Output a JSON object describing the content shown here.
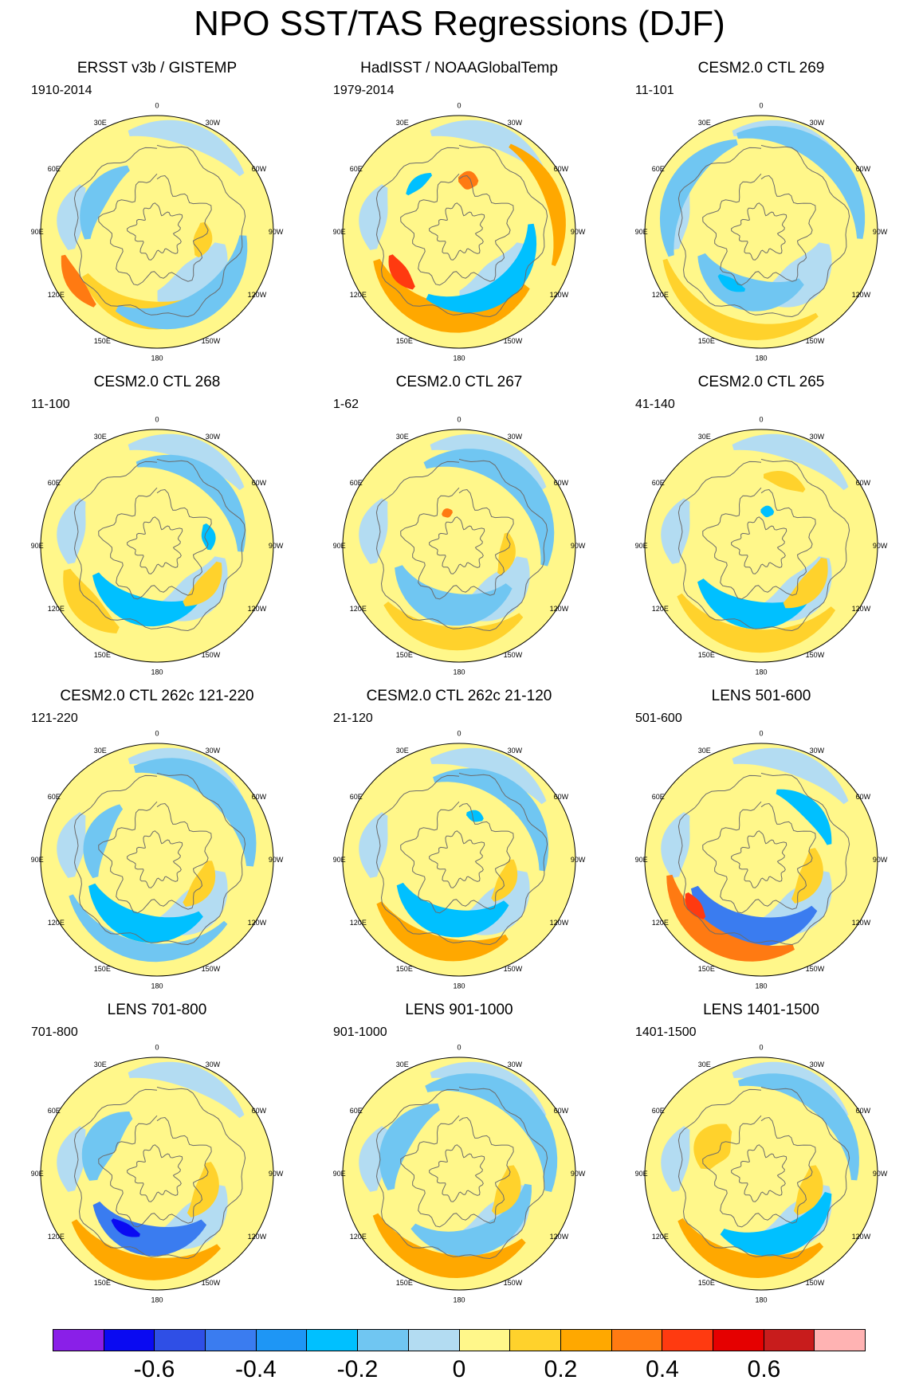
{
  "title": "NPO SST/TAS Regressions (DJF)",
  "lon_labels": [
    "180",
    "150E",
    "120E",
    "90E",
    "60E",
    "30E",
    "0",
    "30W",
    "60W",
    "90W",
    "120W",
    "150W"
  ],
  "colorbar": {
    "colors": [
      "#8a1fe8",
      "#0a0af2",
      "#2f4fe6",
      "#3a7cf0",
      "#1e96f5",
      "#00c0ff",
      "#70c6f2",
      "#b3dcf2",
      "#fff78a",
      "#ffd22c",
      "#ffa800",
      "#ff7a12",
      "#ff3a10",
      "#e50000",
      "#c81c1c",
      "#ffb3b3"
    ],
    "labels": [
      "-0.6",
      "-0.4",
      "-0.2",
      "0",
      "0.2",
      "0.4",
      "0.6"
    ]
  },
  "panels": [
    {
      "title": "ERSST v3b / GISTEMP",
      "period": "1910-2014",
      "blobs": [
        {
          "type": "pos1",
          "lon": 175,
          "r": 0.72,
          "a": 0.3,
          "b": 0.12
        },
        {
          "type": "neg1",
          "lon": -150,
          "r": 0.74,
          "a": 0.32,
          "b": 0.12
        },
        {
          "type": "pos3",
          "lon": 122,
          "r": 0.83,
          "a": 0.1,
          "b": 0.07
        },
        {
          "type": "neg1",
          "lon": 60,
          "r": 0.6,
          "a": 0.2,
          "b": 0.1
        },
        {
          "type": "pos1",
          "lon": -100,
          "r": 0.4,
          "a": 0.12,
          "b": 0.08
        }
      ]
    },
    {
      "title": "HadISST / NOAAGlobalTemp",
      "period": "1979-2014",
      "blobs": [
        {
          "type": "pos2",
          "lon": 170,
          "r": 0.75,
          "a": 0.34,
          "b": 0.12
        },
        {
          "type": "neg2",
          "lon": -145,
          "r": 0.62,
          "a": 0.34,
          "b": 0.1
        },
        {
          "type": "pos4",
          "lon": 125,
          "r": 0.62,
          "a": 0.09,
          "b": 0.07
        },
        {
          "type": "pos3",
          "lon": -10,
          "r": 0.45,
          "a": 0.06,
          "b": 0.08
        },
        {
          "type": "neg2",
          "lon": 40,
          "r": 0.55,
          "a": 0.08,
          "b": 0.05
        },
        {
          "type": "pos2",
          "lon": -70,
          "r": 0.86,
          "a": 0.22,
          "b": 0.07
        }
      ]
    },
    {
      "title": "CESM2.0 CTL 269",
      "period": "11-101",
      "blobs": [
        {
          "type": "neg1",
          "lon": 165,
          "r": 0.55,
          "a": 0.3,
          "b": 0.14
        },
        {
          "type": "neg2",
          "lon": 150,
          "r": 0.52,
          "a": 0.08,
          "b": 0.05
        },
        {
          "type": "pos1",
          "lon": 160,
          "r": 0.86,
          "a": 0.3,
          "b": 0.08
        },
        {
          "type": "neg1",
          "lon": -40,
          "r": 0.85,
          "a": 0.3,
          "b": 0.1
        },
        {
          "type": "neg1",
          "lon": 60,
          "r": 0.8,
          "a": 0.25,
          "b": 0.1
        }
      ]
    },
    {
      "title": "CESM2.0 CTL 268",
      "period": "11-100",
      "blobs": [
        {
          "type": "neg2",
          "lon": 165,
          "r": 0.58,
          "a": 0.28,
          "b": 0.12
        },
        {
          "type": "pos1",
          "lon": 130,
          "r": 0.8,
          "a": 0.14,
          "b": 0.12
        },
        {
          "type": "pos1",
          "lon": -130,
          "r": 0.55,
          "a": 0.14,
          "b": 0.09
        },
        {
          "type": "neg2",
          "lon": -80,
          "r": 0.45,
          "a": 0.08,
          "b": 0.06
        },
        {
          "type": "neg1",
          "lon": -40,
          "r": 0.72,
          "a": 0.3,
          "b": 0.1
        }
      ]
    },
    {
      "title": "CESM2.0 CTL 267",
      "period": "1-62",
      "blobs": [
        {
          "type": "pos1",
          "lon": 175,
          "r": 0.8,
          "a": 0.26,
          "b": 0.1
        },
        {
          "type": "neg1",
          "lon": 170,
          "r": 0.55,
          "a": 0.34,
          "b": 0.14
        },
        {
          "type": "neg1",
          "lon": -40,
          "r": 0.75,
          "a": 0.35,
          "b": 0.12
        },
        {
          "type": "pos1",
          "lon": -100,
          "r": 0.42,
          "a": 0.14,
          "b": 0.07
        },
        {
          "type": "pos3",
          "lon": 20,
          "r": 0.3,
          "a": 0.05,
          "b": 0.04
        }
      ]
    },
    {
      "title": "CESM2.0 CTL 265",
      "period": "41-140",
      "blobs": [
        {
          "type": "neg2",
          "lon": 170,
          "r": 0.6,
          "a": 0.28,
          "b": 0.12
        },
        {
          "type": "pos1",
          "lon": 175,
          "r": 0.82,
          "a": 0.3,
          "b": 0.1
        },
        {
          "type": "pos1",
          "lon": -130,
          "r": 0.55,
          "a": 0.16,
          "b": 0.1
        },
        {
          "type": "neg2",
          "lon": -10,
          "r": 0.3,
          "a": 0.06,
          "b": 0.05
        },
        {
          "type": "pos1",
          "lon": -20,
          "r": 0.6,
          "a": 0.1,
          "b": 0.07
        }
      ]
    },
    {
      "title": "CESM2.0 CTL 262c 121-220",
      "period": "121-220",
      "blobs": [
        {
          "type": "neg2",
          "lon": 165,
          "r": 0.6,
          "a": 0.3,
          "b": 0.12
        },
        {
          "type": "neg1",
          "lon": 170,
          "r": 0.8,
          "a": 0.32,
          "b": 0.08
        },
        {
          "type": "pos1",
          "lon": -120,
          "r": 0.45,
          "a": 0.16,
          "b": 0.09
        },
        {
          "type": "neg1",
          "lon": -40,
          "r": 0.8,
          "a": 0.3,
          "b": 0.12
        },
        {
          "type": "neg1",
          "lon": 70,
          "r": 0.55,
          "a": 0.2,
          "b": 0.1
        }
      ]
    },
    {
      "title": "CESM2.0 CTL 262c 21-120",
      "period": "21-120",
      "blobs": [
        {
          "type": "pos2",
          "lon": 165,
          "r": 0.78,
          "a": 0.26,
          "b": 0.1
        },
        {
          "type": "neg2",
          "lon": 170,
          "r": 0.55,
          "a": 0.32,
          "b": 0.12
        },
        {
          "type": "neg1",
          "lon": -40,
          "r": 0.72,
          "a": 0.32,
          "b": 0.1
        },
        {
          "type": "neg2",
          "lon": -20,
          "r": 0.4,
          "a": 0.06,
          "b": 0.05
        },
        {
          "type": "pos1",
          "lon": -115,
          "r": 0.45,
          "a": 0.14,
          "b": 0.08
        }
      ]
    },
    {
      "title": "LENS 501-600",
      "period": "501-600",
      "blobs": [
        {
          "type": "neg3",
          "lon": 170,
          "r": 0.62,
          "a": 0.32,
          "b": 0.13
        },
        {
          "type": "pos3",
          "lon": 150,
          "r": 0.8,
          "a": 0.28,
          "b": 0.1
        },
        {
          "type": "pos4",
          "lon": 125,
          "r": 0.7,
          "a": 0.06,
          "b": 0.06
        },
        {
          "type": "pos1",
          "lon": -110,
          "r": 0.45,
          "a": 0.18,
          "b": 0.1
        },
        {
          "type": "neg2",
          "lon": -45,
          "r": 0.6,
          "a": 0.18,
          "b": 0.08
        }
      ]
    },
    {
      "title": "LENS 701-800",
      "period": "701-800",
      "blobs": [
        {
          "type": "neg3",
          "lon": 170,
          "r": 0.58,
          "a": 0.3,
          "b": 0.13
        },
        {
          "type": "neg4",
          "lon": 150,
          "r": 0.55,
          "a": 0.08,
          "b": 0.05
        },
        {
          "type": "pos2",
          "lon": 170,
          "r": 0.82,
          "a": 0.28,
          "b": 0.1
        },
        {
          "type": "pos1",
          "lon": -110,
          "r": 0.45,
          "a": 0.18,
          "b": 0.1
        },
        {
          "type": "neg1",
          "lon": 60,
          "r": 0.55,
          "a": 0.2,
          "b": 0.14
        }
      ]
    },
    {
      "title": "LENS 901-1000",
      "period": "901-1000",
      "blobs": [
        {
          "type": "pos2",
          "lon": 170,
          "r": 0.8,
          "a": 0.3,
          "b": 0.1
        },
        {
          "type": "neg1",
          "lon": -160,
          "r": 0.6,
          "a": 0.34,
          "b": 0.12
        },
        {
          "type": "pos1",
          "lon": -110,
          "r": 0.45,
          "a": 0.16,
          "b": 0.1
        },
        {
          "type": "neg1",
          "lon": -40,
          "r": 0.78,
          "a": 0.34,
          "b": 0.12
        },
        {
          "type": "neg1",
          "lon": 60,
          "r": 0.6,
          "a": 0.24,
          "b": 0.12
        }
      ]
    },
    {
      "title": "LENS 1401-1500",
      "period": "1401-1500",
      "blobs": [
        {
          "type": "pos2",
          "lon": 170,
          "r": 0.8,
          "a": 0.28,
          "b": 0.1
        },
        {
          "type": "neg2",
          "lon": -160,
          "r": 0.6,
          "a": 0.3,
          "b": 0.12
        },
        {
          "type": "pos1",
          "lon": 60,
          "r": 0.48,
          "a": 0.14,
          "b": 0.16
        },
        {
          "type": "pos1",
          "lon": -110,
          "r": 0.45,
          "a": 0.16,
          "b": 0.1
        },
        {
          "type": "neg1",
          "lon": -40,
          "r": 0.8,
          "a": 0.3,
          "b": 0.1
        }
      ]
    }
  ]
}
